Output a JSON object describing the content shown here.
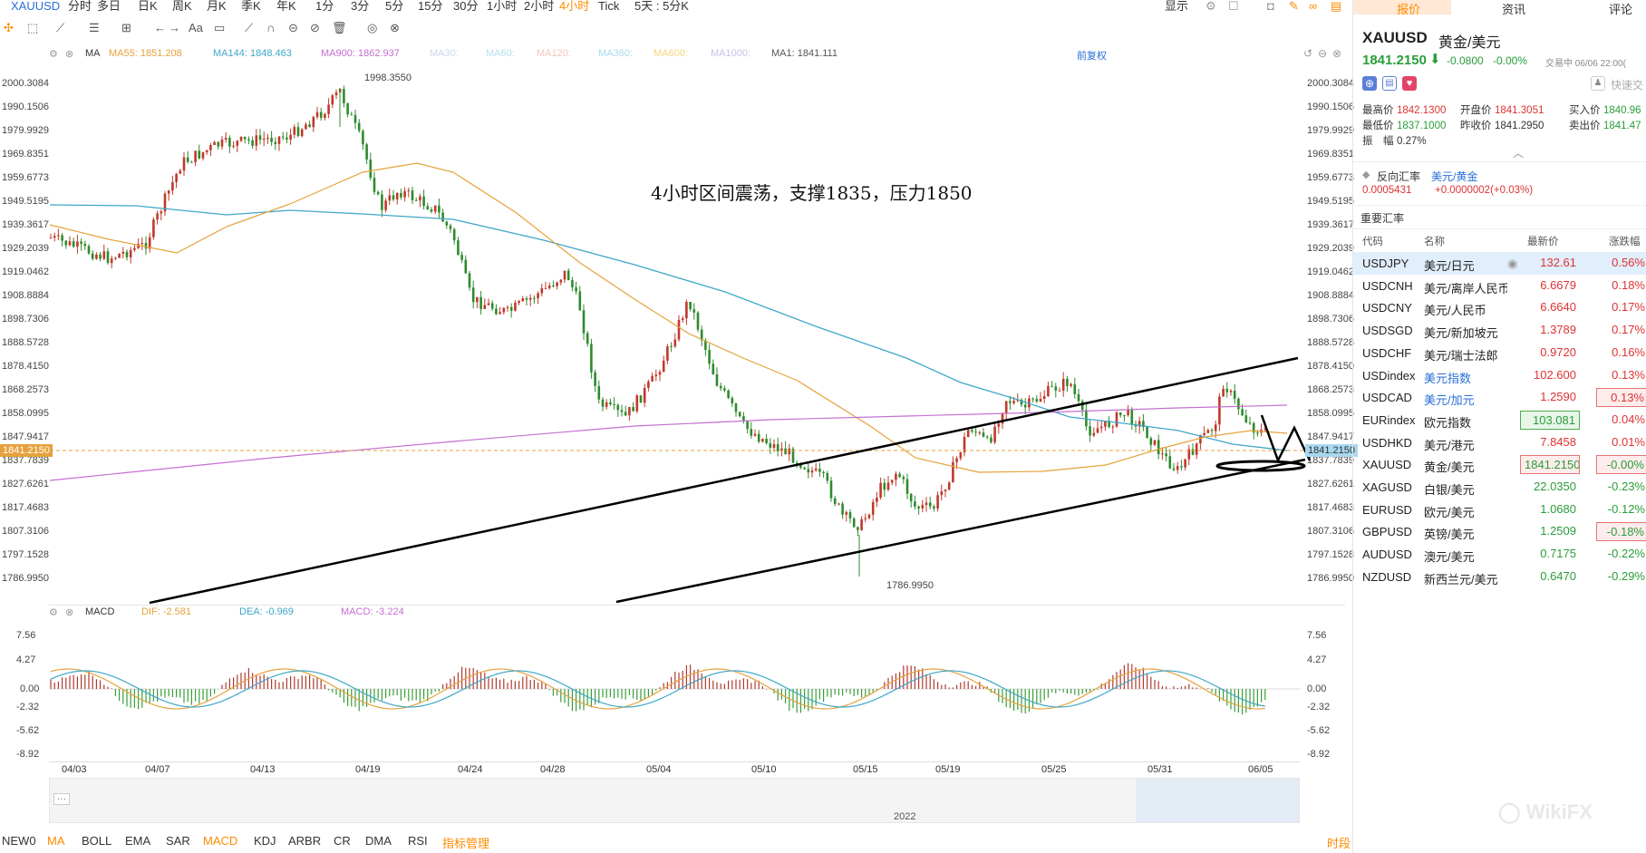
{
  "topbar": {
    "symbol": "XAUUSD",
    "periods": [
      "分时",
      "多日",
      "日K",
      "周K",
      "月K",
      "季K",
      "年K",
      "1分",
      "3分",
      "5分",
      "15分",
      "30分",
      "1小时",
      "2小时",
      "4小时",
      "Tick",
      "5天 : 5分K"
    ],
    "active_period": "4小时",
    "display_label": "显示"
  },
  "toolbar": {
    "text_tool": "Aa"
  },
  "main_indicators": {
    "name": "MA",
    "ma55": "MA55: 1851.208",
    "ma144": "MA144: 1848.463",
    "ma900": "MA900: 1862.937",
    "ma30": "MA30:",
    "ma60": "MA60:",
    "ma120": "MA120:",
    "ma360": "MA360:",
    "ma600": "MA600:",
    "ma1000": "MA1000:",
    "ma1": "MA1: 1841.111",
    "adjust_label": "前复权",
    "colors": {
      "ma55": "#e6a23c",
      "ma144": "#3fa7c9",
      "ma900": "#c46fd0"
    }
  },
  "annotation": "4小时区间震荡，支撑1835，压力1850",
  "price_high_label": "1998.3550",
  "price_low_label": "1786.9950",
  "current_price": "1841.2150",
  "y_ticks": [
    "2000.3084",
    "1990.1506",
    "1979.9929",
    "1969.8351",
    "1959.6773",
    "1949.5195",
    "1939.3617",
    "1929.2039",
    "1919.0462",
    "1908.8884",
    "1898.7306",
    "1888.5728",
    "1878.4150",
    "1868.2573",
    "1858.0995",
    "1847.9417",
    "1837.7839",
    "1827.6261",
    "1817.4683",
    "1807.3106",
    "1797.1528",
    "1786.9950"
  ],
  "macd": {
    "name": "MACD",
    "dif": "DIF: -2.581",
    "dea": "DEA: -0.969",
    "macd": "MACD: -3.224",
    "y_ticks": [
      "7.56",
      "4.27",
      "0.00",
      "-2.32",
      "-5.62",
      "-8.92"
    ]
  },
  "x_dates": [
    "04/03",
    "04/07",
    "04/13",
    "04/19",
    "04/24",
    "04/28",
    "05/04",
    "05/10",
    "05/15",
    "05/19",
    "05/25",
    "05/31",
    "06/05"
  ],
  "scroll_year": "2022",
  "bottom_tabs": [
    "NEW0",
    "MA",
    "BOLL",
    "EMA",
    "SAR",
    "MACD",
    "KDJ",
    "ARBR",
    "CR",
    "DMA",
    "RSI",
    "指标管理"
  ],
  "bottom_active": [
    "MA",
    "MACD"
  ],
  "bottom_right": "时段",
  "right_panel": {
    "tabs": [
      "报价",
      "资讯",
      "评论"
    ],
    "symbol": "XAUUSD",
    "name": "黄金/美元",
    "price": "1841.2150",
    "change": "-0.0800",
    "change_pct": "-0.00%",
    "status": "交易中 06/06 22:00(",
    "quick_trade": "快速交",
    "stats": [
      {
        "label": "最高价",
        "value": "1842.1300",
        "color": "red"
      },
      {
        "label": "开盘价",
        "value": "1841.3051",
        "color": "red"
      },
      {
        "label": "买入价",
        "value": "1840.96",
        "color": "green"
      },
      {
        "label": "最低价",
        "value": "1837.1000",
        "color": "green"
      },
      {
        "label": "昨收价",
        "value": "1841.2950",
        "color": "dark"
      },
      {
        "label": "卖出价",
        "value": "1841.47",
        "color": "green"
      }
    ],
    "amplitude_label": "振　幅",
    "amplitude": "0.27%",
    "reverse_label": "反向汇率",
    "reverse_pair": "美元/黄金",
    "reverse_value": "0.0005431",
    "reverse_change": "+0.0000002(+0.03%)",
    "section_title": "重要汇率",
    "columns": [
      "代码",
      "名称",
      "最新价",
      "涨跌幅"
    ],
    "rows": [
      {
        "code": "USDJPY",
        "name": "美元/日元",
        "price": "132.61",
        "pct": "0.56%",
        "dir": "up"
      },
      {
        "code": "USDCNH",
        "name": "美元/离岸人民币",
        "price": "6.6679",
        "pct": "0.18%",
        "dir": "up"
      },
      {
        "code": "USDCNY",
        "name": "美元/人民币",
        "price": "6.6640",
        "pct": "0.17%",
        "dir": "up"
      },
      {
        "code": "USDSGD",
        "name": "美元/新加坡元",
        "price": "1.3789",
        "pct": "0.17%",
        "dir": "up"
      },
      {
        "code": "USDCHF",
        "name": "美元/瑞士法郎",
        "price": "0.9720",
        "pct": "0.16%",
        "dir": "up"
      },
      {
        "code": "USDindex",
        "name": "美元指数",
        "price": "102.600",
        "pct": "0.13%",
        "dir": "up"
      },
      {
        "code": "USDCAD",
        "name": "美元/加元",
        "price": "1.2590",
        "pct": "0.13%",
        "dir": "up"
      },
      {
        "code": "EURindex",
        "name": "欧元指数",
        "price": "103.081",
        "pct": "0.04%",
        "dir": "up"
      },
      {
        "code": "USDHKD",
        "name": "美元/港元",
        "price": "7.8458",
        "pct": "0.01%",
        "dir": "up"
      },
      {
        "code": "XAUUSD",
        "name": "黄金/美元",
        "price": "1841.2150",
        "pct": "-0.00%",
        "dir": "down"
      },
      {
        "code": "XAGUSD",
        "name": "白银/美元",
        "price": "22.0350",
        "pct": "-0.23%",
        "dir": "down"
      },
      {
        "code": "EURUSD",
        "name": "欧元/美元",
        "price": "1.0680",
        "pct": "-0.12%",
        "dir": "down"
      },
      {
        "code": "GBPUSD",
        "name": "英镑/美元",
        "price": "1.2509",
        "pct": "-0.18%",
        "dir": "down"
      },
      {
        "code": "AUDUSD",
        "name": "澳元/美元",
        "price": "0.7175",
        "pct": "-0.22%",
        "dir": "down"
      },
      {
        "code": "NZDUSD",
        "name": "新西兰元/美元",
        "price": "0.6470",
        "pct": "-0.29%",
        "dir": "down"
      }
    ]
  }
}
